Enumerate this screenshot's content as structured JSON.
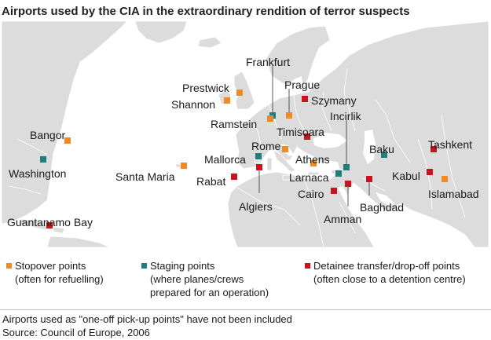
{
  "title": "Airports used by the CIA in the extraordinary rendition of terror suspects",
  "colors": {
    "stopover": "#f08a24",
    "staging": "#1f7f7c",
    "detainee": "#c8141e",
    "land": "#dcdcdc",
    "sea": "#ffffff",
    "border": "#ffffff"
  },
  "airports": [
    {
      "name": "Frankfurt",
      "type": "staging"
    },
    {
      "name": "Prestwick",
      "type": "stopover"
    },
    {
      "name": "Shannon",
      "type": "stopover"
    },
    {
      "name": "Prague",
      "type": "stopover"
    },
    {
      "name": "Szymany",
      "type": "detainee"
    },
    {
      "name": "Ramstein",
      "type": "stopover"
    },
    {
      "name": "Incirlik",
      "type": "staging"
    },
    {
      "name": "Timisoara",
      "type": "detainee"
    },
    {
      "name": "Bangor",
      "type": "stopover"
    },
    {
      "name": "Washington",
      "type": "staging"
    },
    {
      "name": "Rome",
      "type": "stopover"
    },
    {
      "name": "Baku",
      "type": "staging"
    },
    {
      "name": "Tashkent",
      "type": "detainee"
    },
    {
      "name": "Mallorca",
      "type": "staging"
    },
    {
      "name": "Athens",
      "type": "stopover"
    },
    {
      "name": "Santa Maria",
      "type": "stopover"
    },
    {
      "name": "Rabat",
      "type": "detainee"
    },
    {
      "name": "Larnaca",
      "type": "staging"
    },
    {
      "name": "Kabul",
      "type": "detainee"
    },
    {
      "name": "Cairo",
      "type": "detainee"
    },
    {
      "name": "Islamabad",
      "type": "stopover"
    },
    {
      "name": "Algiers",
      "type": "detainee"
    },
    {
      "name": "Baghdad",
      "type": "detainee"
    },
    {
      "name": "Amman",
      "type": "detainee"
    },
    {
      "name": "Guantanamo Bay",
      "type": "detainee"
    }
  ],
  "legend": {
    "stopover": {
      "title": "Stopover points",
      "desc": "(often for refuelling)"
    },
    "staging": {
      "title": "Staging points",
      "desc1": "(where planes/crews",
      "desc2": "prepared for an operation)"
    },
    "detainee": {
      "title": "Detainee transfer/drop-off points",
      "desc": "(often close to a detention centre)"
    }
  },
  "footer": {
    "note": "Airports used as \"one-off pick-up points\" have not been included",
    "source": "Source: Council of Europe, 2006"
  }
}
